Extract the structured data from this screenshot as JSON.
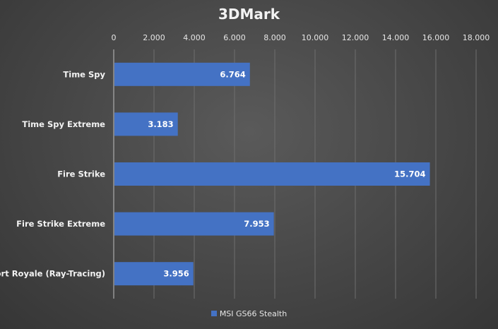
{
  "chart_data": {
    "type": "bar",
    "orientation": "horizontal",
    "title": "3DMark",
    "categories": [
      "Time Spy",
      "Time Spy Extreme",
      "Fire Strike",
      "Fire Strike Extreme",
      "Port Royale (Ray-Tracing)"
    ],
    "series": [
      {
        "name": "MSI GS66 Stealth",
        "values": [
          6764,
          3183,
          15704,
          7953,
          3956
        ],
        "color": "#4472c4"
      }
    ],
    "data_labels": [
      "6.764",
      "3.183",
      "15.704",
      "7.953",
      "3.956"
    ],
    "xlim": [
      0,
      18000
    ],
    "xticks": [
      0,
      2000,
      4000,
      6000,
      8000,
      10000,
      12000,
      14000,
      16000,
      18000
    ],
    "xtick_labels": [
      "0",
      "2.000",
      "4.000",
      "6.000",
      "8.000",
      "10.000",
      "12.000",
      "14.000",
      "16.000",
      "18.000"
    ],
    "xaxis_position": "top",
    "grid": true,
    "legend_position": "bottom"
  }
}
